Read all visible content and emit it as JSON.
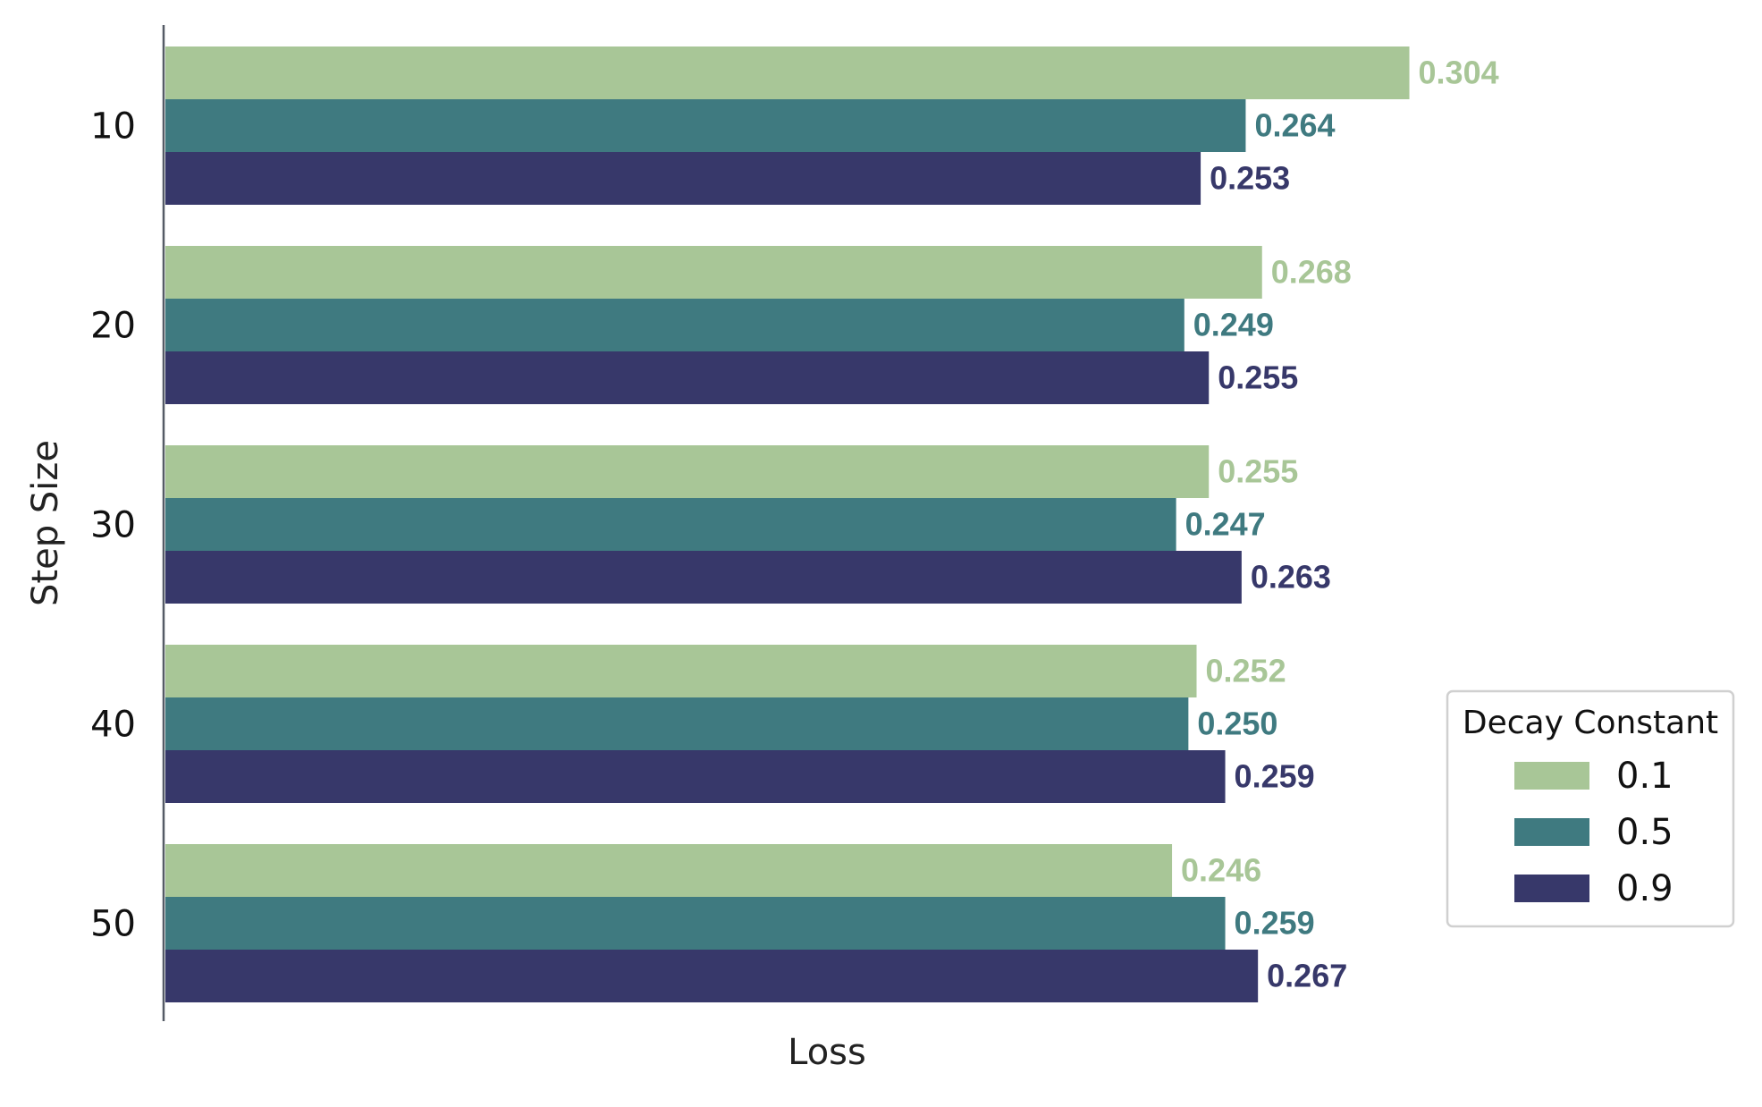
{
  "chart_data": {
    "type": "bar",
    "orientation": "horizontal",
    "categories": [
      "10",
      "20",
      "30",
      "40",
      "50"
    ],
    "series": [
      {
        "name": "0.1",
        "color": "#a8c697",
        "values": [
          0.304,
          0.268,
          0.255,
          0.252,
          0.246
        ]
      },
      {
        "name": "0.5",
        "color": "#3f7a80",
        "values": [
          0.264,
          0.249,
          0.247,
          0.25,
          0.259
        ]
      },
      {
        "name": "0.9",
        "color": "#37386a",
        "values": [
          0.253,
          0.255,
          0.263,
          0.259,
          0.267
        ]
      }
    ],
    "value_labels": [
      [
        "0.304",
        "0.268",
        "0.255",
        "0.252",
        "0.246"
      ],
      [
        "0.264",
        "0.249",
        "0.247",
        "0.250",
        "0.259"
      ],
      [
        "0.253",
        "0.255",
        "0.263",
        "0.259",
        "0.267"
      ]
    ],
    "xlabel": "Loss",
    "ylabel": "Step Size",
    "xlim": [
      0,
      0.31
    ],
    "x_ticks_shown": false,
    "grid": false,
    "legend": {
      "title": "Decay Constant",
      "placement": "right"
    }
  }
}
